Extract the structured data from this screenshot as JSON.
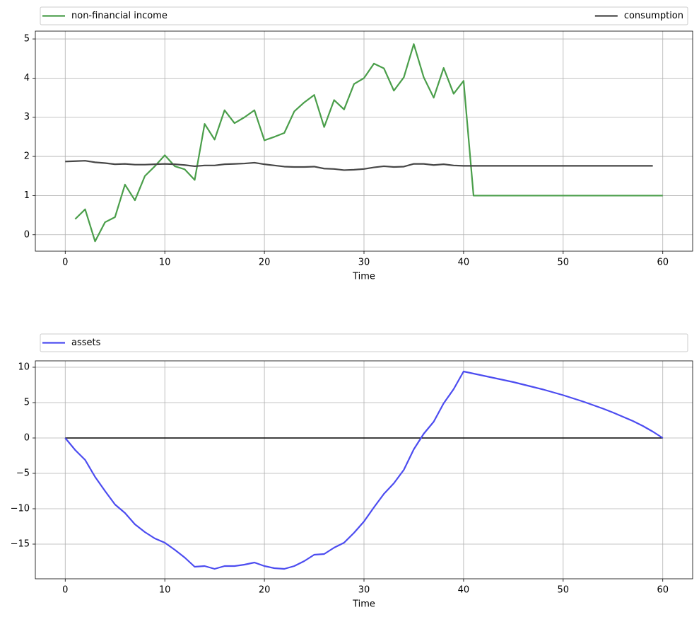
{
  "chart_data": [
    {
      "type": "line",
      "x": [
        0,
        1,
        2,
        3,
        4,
        5,
        6,
        7,
        8,
        9,
        10,
        11,
        12,
        13,
        14,
        15,
        16,
        17,
        18,
        19,
        20,
        21,
        22,
        23,
        24,
        25,
        26,
        27,
        28,
        29,
        30,
        31,
        32,
        33,
        34,
        35,
        36,
        37,
        38,
        39,
        40,
        41,
        42,
        43,
        44,
        45,
        46,
        47,
        48,
        49,
        50,
        51,
        52,
        53,
        54,
        55,
        56,
        57,
        58,
        59,
        60
      ],
      "series": [
        {
          "name": "non-financial income",
          "color": "#4a9e4a",
          "values": [
            null,
            0.4,
            0.65,
            -0.17,
            0.32,
            0.45,
            1.28,
            0.88,
            1.5,
            1.75,
            2.03,
            1.75,
            1.67,
            1.4,
            2.83,
            2.43,
            3.18,
            2.85,
            3.0,
            3.18,
            2.41,
            2.5,
            2.6,
            3.15,
            3.38,
            3.57,
            2.75,
            3.44,
            3.2,
            3.85,
            4.0,
            4.37,
            4.25,
            3.68,
            4.02,
            4.87,
            4.02,
            3.5,
            4.26,
            3.6,
            3.93,
            1.0,
            1.0,
            1.0,
            1.0,
            1.0,
            1.0,
            1.0,
            1.0,
            1.0,
            1.0,
            1.0,
            1.0,
            1.0,
            1.0,
            1.0,
            1.0,
            1.0,
            1.0,
            1.0,
            1.0
          ]
        },
        {
          "name": "consumption",
          "color": "#474747",
          "values": [
            1.87,
            1.88,
            1.89,
            1.85,
            1.83,
            1.8,
            1.81,
            1.79,
            1.79,
            1.8,
            1.81,
            1.8,
            1.78,
            1.75,
            1.77,
            1.77,
            1.8,
            1.81,
            1.82,
            1.84,
            1.8,
            1.77,
            1.74,
            1.73,
            1.73,
            1.74,
            1.69,
            1.68,
            1.65,
            1.66,
            1.68,
            1.72,
            1.75,
            1.73,
            1.74,
            1.81,
            1.81,
            1.78,
            1.8,
            1.77,
            1.76,
            1.76,
            1.76,
            1.76,
            1.76,
            1.76,
            1.76,
            1.76,
            1.76,
            1.76,
            1.76,
            1.76,
            1.76,
            1.76,
            1.76,
            1.76,
            1.76,
            1.76,
            1.76,
            1.76,
            null
          ]
        }
      ],
      "xlabel": "Time",
      "xlim": [
        -3,
        63
      ],
      "xticks": [
        0,
        10,
        20,
        30,
        40,
        50,
        60
      ],
      "ylim": [
        -0.42,
        5.2
      ],
      "yticks": [
        0,
        1,
        2,
        3,
        4,
        5
      ],
      "grid": true,
      "legend": "above"
    },
    {
      "type": "line",
      "x": [
        0,
        1,
        2,
        3,
        4,
        5,
        6,
        7,
        8,
        9,
        10,
        11,
        12,
        13,
        14,
        15,
        16,
        17,
        18,
        19,
        20,
        21,
        22,
        23,
        24,
        25,
        26,
        27,
        28,
        29,
        30,
        31,
        32,
        33,
        34,
        35,
        36,
        37,
        38,
        39,
        40,
        41,
        42,
        43,
        44,
        45,
        46,
        47,
        48,
        49,
        50,
        51,
        52,
        53,
        54,
        55,
        56,
        57,
        58,
        59,
        60
      ],
      "series": [
        {
          "name": "assets",
          "color": "#4c4cf0",
          "values": [
            0,
            -1.7,
            -3.1,
            -5.5,
            -7.5,
            -9.4,
            -10.6,
            -12.2,
            -13.3,
            -14.2,
            -14.8,
            -15.8,
            -16.9,
            -18.2,
            -18.1,
            -18.5,
            -18.1,
            -18.1,
            -17.9,
            -17.6,
            -18.1,
            -18.4,
            -18.5,
            -18.1,
            -17.4,
            -16.5,
            -16.4,
            -15.5,
            -14.8,
            -13.4,
            -11.8,
            -9.8,
            -7.9,
            -6.4,
            -4.5,
            -1.6,
            0.6,
            2.3,
            4.9,
            6.9,
            9.4,
            9.1,
            8.8,
            8.5,
            8.2,
            7.9,
            7.55,
            7.2,
            6.85,
            6.45,
            6.05,
            5.6,
            5.15,
            4.65,
            4.15,
            3.6,
            3.0,
            2.4,
            1.7,
            0.9,
            0
          ]
        }
      ],
      "hline": {
        "y": 0,
        "x": [
          0,
          60
        ],
        "color": "#000000"
      },
      "xlabel": "Time",
      "xlim": [
        -3,
        63
      ],
      "xticks": [
        0,
        10,
        20,
        30,
        40,
        50,
        60
      ],
      "ylim": [
        -19.9,
        10.9
      ],
      "yticks": [
        {
          "value": -15,
          "label": "−15"
        },
        {
          "value": -10,
          "label": "−10"
        },
        {
          "value": -5,
          "label": "−5"
        },
        0,
        5,
        10
      ],
      "grid": true,
      "legend": "above"
    }
  ]
}
